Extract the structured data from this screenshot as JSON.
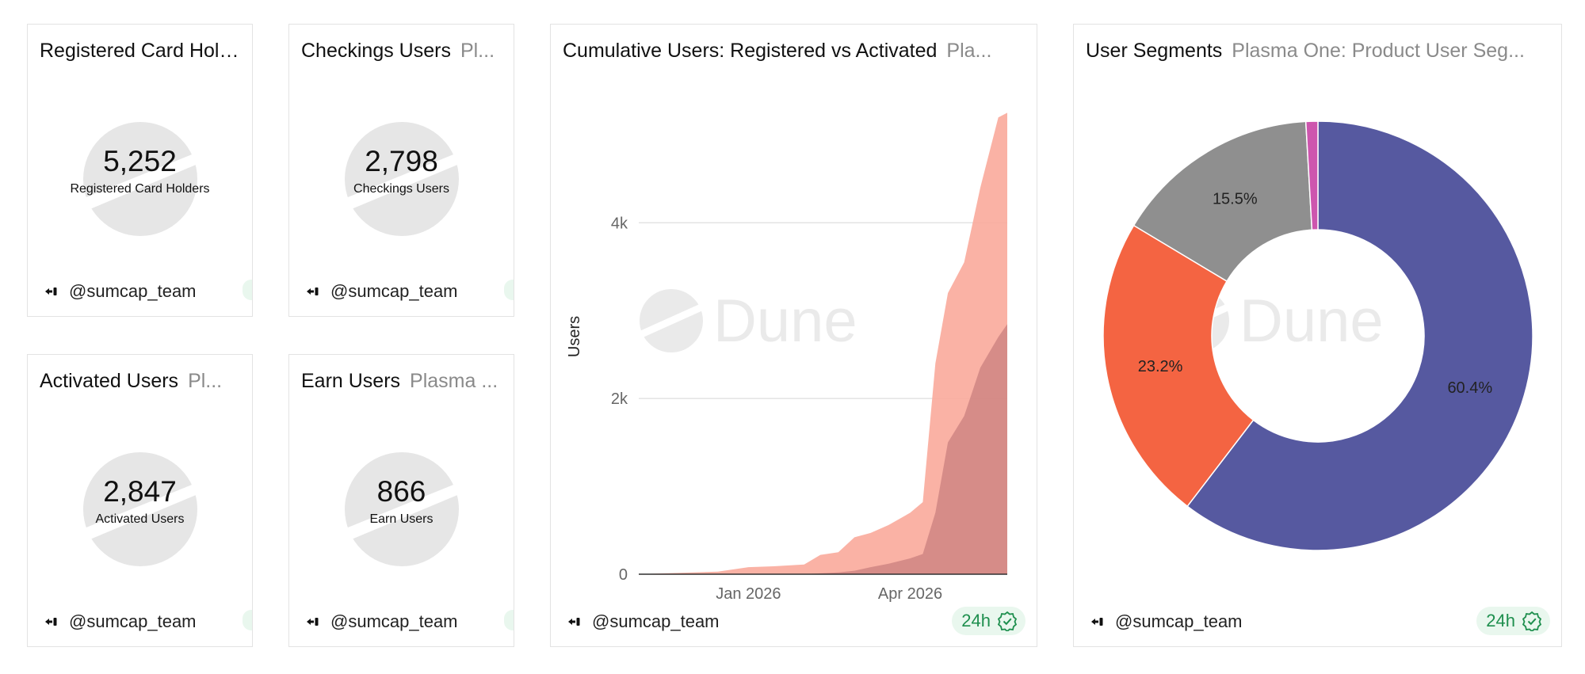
{
  "user_handle": "@sumcap_team",
  "freshness": "24h",
  "counters": [
    {
      "title": "Registered Card Hol...",
      "subtitle": "",
      "value": "5,252",
      "label": "Registered Card Holders"
    },
    {
      "title": "Checkings Users",
      "subtitle": "Pl...",
      "value": "2,798",
      "label": "Checkings Users"
    },
    {
      "title": "Activated Users",
      "subtitle": "Pl...",
      "value": "2,847",
      "label": "Activated Users"
    },
    {
      "title": "Earn Users",
      "subtitle": "Plasma ...",
      "value": "866",
      "label": "Earn Users"
    }
  ],
  "area_card": {
    "title": "Cumulative Users: Registered vs Activated",
    "subtitle": "Pla..."
  },
  "donut_card": {
    "title": "User Segments",
    "subtitle": "Plasma One: Product User Seg..."
  },
  "watermark": "Dune",
  "colors": {
    "registered": "#f9aa9b",
    "activated": "#cf8583",
    "seg_purple": "#5659a0",
    "seg_orange": "#f46442",
    "seg_gray": "#8f8f8f",
    "seg_pink": "#cd56ae",
    "accent_green": "#1e8f4e"
  },
  "chart_data": [
    {
      "type": "area",
      "title": "Cumulative Users: Registered vs Activated",
      "ylabel": "Users",
      "xlabel": "",
      "x": [
        "2025-11-01",
        "2025-11-15",
        "2025-12-01",
        "2025-12-15",
        "2026-01-01",
        "2026-01-15",
        "2026-02-01",
        "2026-02-10",
        "2026-02-20",
        "2026-03-01",
        "2026-03-10",
        "2026-03-20",
        "2026-04-01",
        "2026-04-08",
        "2026-04-15",
        "2026-04-22",
        "2026-05-01",
        "2026-05-10",
        "2026-05-20",
        "2026-05-25"
      ],
      "x_ticks": [
        "Jan 2026",
        "Apr 2026"
      ],
      "y_ticks": [
        "0",
        "2k",
        "4k"
      ],
      "ylim": [
        0,
        5400
      ],
      "grid": true,
      "series": [
        {
          "values": [
            0,
            10,
            20,
            30,
            80,
            90,
            110,
            220,
            250,
            420,
            470,
            560,
            700,
            820,
            2400,
            3200,
            3550,
            4400,
            5200,
            5252
          ]
        },
        {
          "values": [
            0,
            0,
            0,
            0,
            0,
            0,
            0,
            10,
            20,
            40,
            80,
            120,
            180,
            230,
            700,
            1500,
            1800,
            2350,
            2700,
            2847
          ]
        }
      ]
    },
    {
      "type": "pie",
      "title": "User Segments",
      "slices": [
        {
          "label": "60.4%",
          "value": 60.4
        },
        {
          "label": "23.2%",
          "value": 23.2
        },
        {
          "label": "15.5%",
          "value": 15.5
        },
        {
          "label": "",
          "value": 0.9
        }
      ]
    }
  ]
}
